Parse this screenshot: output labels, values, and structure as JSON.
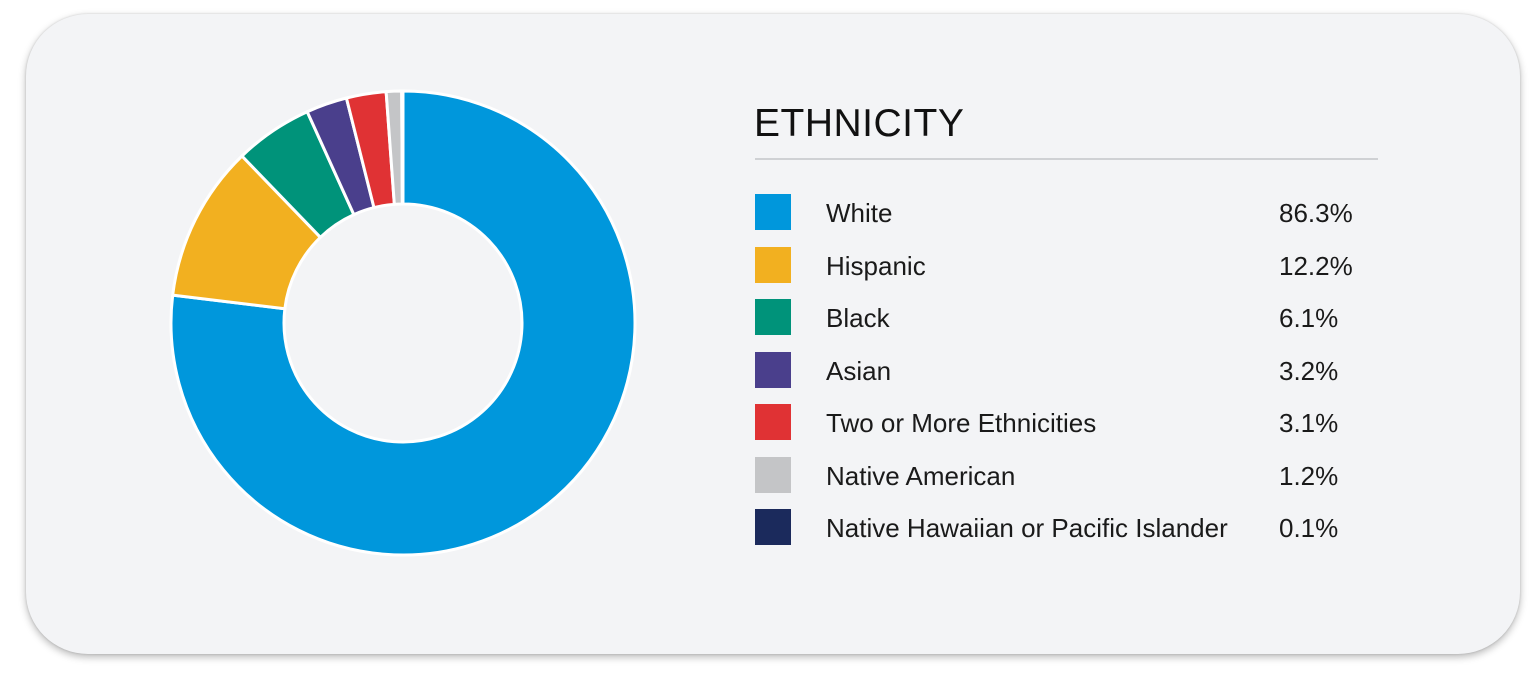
{
  "chart_data": {
    "type": "pie",
    "style": "donut",
    "title": "ETHNICITY",
    "categories": [
      "White",
      "Hispanic",
      "Black",
      "Asian",
      "Two or More Ethnicities",
      "Native American",
      "Native Hawaiian or Pacific Islander"
    ],
    "values": [
      86.3,
      12.2,
      6.1,
      3.2,
      3.1,
      1.2,
      0.1
    ],
    "value_labels": [
      "86.3%",
      "12.2%",
      "6.1%",
      "3.2%",
      "3.1%",
      "1.2%",
      "0.1%"
    ],
    "colors": [
      "#0097dc",
      "#f2b020",
      "#00937a",
      "#4a3f8c",
      "#e03234",
      "#c4c5c7",
      "#1b2a5c"
    ],
    "legend_position": "right"
  }
}
